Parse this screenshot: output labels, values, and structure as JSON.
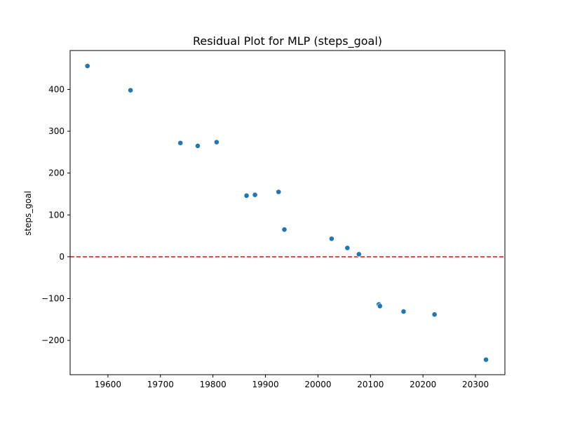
{
  "chart_data": {
    "type": "scatter",
    "title": "Residual Plot for MLP (steps_goal)",
    "xlabel": "",
    "ylabel": "steps_goal",
    "xlim": [
      19528,
      20356
    ],
    "ylim": [
      -282,
      493
    ],
    "x_ticks": [
      19600,
      19700,
      19800,
      19900,
      20000,
      20100,
      20200,
      20300
    ],
    "y_ticks": [
      -200,
      -100,
      0,
      100,
      200,
      300,
      400
    ],
    "y_tick_labels": [
      "−200",
      "−100",
      "0",
      "100",
      "200",
      "300",
      "400"
    ],
    "point_color": "#1f77b4",
    "reference_line": {
      "y": 0,
      "color": "#d62728",
      "style": "dashed"
    },
    "grid": false,
    "points": [
      {
        "x": 19561,
        "y": 456
      },
      {
        "x": 19643,
        "y": 398
      },
      {
        "x": 19738,
        "y": 272
      },
      {
        "x": 19771,
        "y": 265
      },
      {
        "x": 19807,
        "y": 274
      },
      {
        "x": 19864,
        "y": 146
      },
      {
        "x": 19880,
        "y": 148
      },
      {
        "x": 19925,
        "y": 155
      },
      {
        "x": 19936,
        "y": 65
      },
      {
        "x": 20026,
        "y": 43
      },
      {
        "x": 20056,
        "y": 21
      },
      {
        "x": 20078,
        "y": 6
      },
      {
        "x": 20116,
        "y": -114
      },
      {
        "x": 20118,
        "y": -118
      },
      {
        "x": 20163,
        "y": -131
      },
      {
        "x": 20222,
        "y": -138
      },
      {
        "x": 20320,
        "y": -246
      }
    ]
  }
}
